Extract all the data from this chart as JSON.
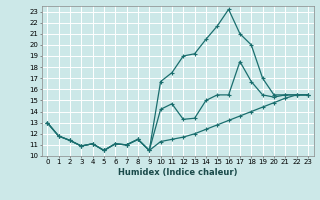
{
  "xlabel": "Humidex (Indice chaleur)",
  "bg_color": "#cce8e8",
  "grid_color": "#ffffff",
  "line_color": "#1a6e6e",
  "xlim": [
    -0.5,
    23.5
  ],
  "ylim": [
    10.0,
    23.5
  ],
  "x_ticks": [
    0,
    1,
    2,
    3,
    4,
    5,
    6,
    7,
    8,
    9,
    10,
    11,
    12,
    13,
    14,
    15,
    16,
    17,
    18,
    19,
    20,
    21,
    22,
    23
  ],
  "y_ticks": [
    10,
    11,
    12,
    13,
    14,
    15,
    16,
    17,
    18,
    19,
    20,
    21,
    22,
    23
  ],
  "line1_x": [
    0,
    1,
    2,
    3,
    4,
    5,
    6,
    7,
    8,
    9,
    10,
    11,
    12,
    13,
    14,
    15,
    16,
    17,
    18,
    19,
    20,
    21,
    22,
    23
  ],
  "line1_y": [
    13.0,
    11.8,
    11.4,
    10.9,
    11.1,
    10.5,
    11.1,
    11.0,
    11.5,
    10.5,
    16.7,
    17.5,
    19.0,
    19.2,
    20.5,
    21.7,
    23.2,
    21.0,
    20.0,
    17.0,
    15.5,
    15.5,
    15.5,
    15.5
  ],
  "line2_x": [
    0,
    1,
    2,
    3,
    4,
    5,
    6,
    7,
    8,
    9,
    10,
    11,
    12,
    13,
    14,
    15,
    16,
    17,
    18,
    19,
    20,
    21,
    22,
    23
  ],
  "line2_y": [
    13.0,
    11.8,
    11.4,
    10.9,
    11.1,
    10.5,
    11.1,
    11.0,
    11.5,
    10.5,
    14.2,
    14.7,
    13.3,
    13.4,
    15.0,
    15.5,
    15.5,
    18.5,
    16.7,
    15.5,
    15.3,
    15.5,
    15.5,
    15.5
  ],
  "line3_x": [
    0,
    1,
    2,
    3,
    4,
    5,
    6,
    7,
    8,
    9,
    10,
    11,
    12,
    13,
    14,
    15,
    16,
    17,
    18,
    19,
    20,
    21,
    22,
    23
  ],
  "line3_y": [
    13.0,
    11.8,
    11.4,
    10.9,
    11.1,
    10.5,
    11.1,
    11.0,
    11.5,
    10.5,
    11.3,
    11.5,
    11.7,
    12.0,
    12.4,
    12.8,
    13.2,
    13.6,
    14.0,
    14.4,
    14.8,
    15.2,
    15.5,
    15.5
  ]
}
